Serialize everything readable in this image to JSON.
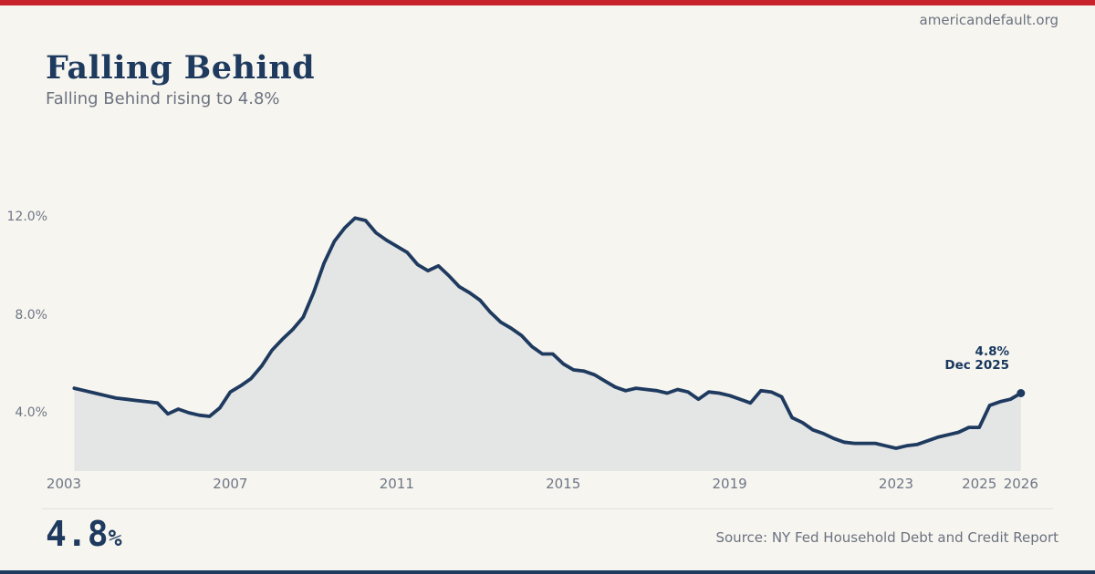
{
  "site": {
    "domain": "americandefault.org"
  },
  "header": {
    "title": "Falling Behind",
    "subtitle": "Falling Behind rising to 4.8%"
  },
  "chart_data": {
    "type": "area",
    "title": "Falling Behind",
    "xlabel": "",
    "ylabel": "",
    "x_start": "2003Q1",
    "x_end": "2025Q4",
    "points_per_year": 4,
    "start_year": 2003,
    "xlim": [
      2003,
      2026
    ],
    "ylim": [
      1.6,
      12.6
    ],
    "grid": false,
    "legend": "none",
    "series": [
      {
        "name": "delinquency_rate_percent",
        "values": [
          5.0,
          4.9,
          4.8,
          4.7,
          4.6,
          4.55,
          4.5,
          4.45,
          4.4,
          3.95,
          4.15,
          4.0,
          3.9,
          3.85,
          4.2,
          4.85,
          5.1,
          5.4,
          5.9,
          6.55,
          7.0,
          7.4,
          7.9,
          8.9,
          10.1,
          11.0,
          11.55,
          11.95,
          11.85,
          11.35,
          11.05,
          10.8,
          10.55,
          10.05,
          9.8,
          10.0,
          9.6,
          9.15,
          8.9,
          8.6,
          8.1,
          7.7,
          7.45,
          7.15,
          6.7,
          6.4,
          6.4,
          6.0,
          5.75,
          5.7,
          5.55,
          5.3,
          5.05,
          4.9,
          5.0,
          4.95,
          4.9,
          4.8,
          4.95,
          4.85,
          4.55,
          4.85,
          4.8,
          4.7,
          4.55,
          4.4,
          4.9,
          4.85,
          4.65,
          3.8,
          3.6,
          3.3,
          3.15,
          2.95,
          2.8,
          2.75,
          2.75,
          2.75,
          2.65,
          2.55,
          2.65,
          2.7,
          2.85,
          3.0,
          3.1,
          3.2,
          3.4,
          3.4,
          4.3,
          4.45,
          4.55,
          4.8
        ]
      }
    ],
    "x_ticks": [
      {
        "label": "2003",
        "year": 2003
      },
      {
        "label": "2007",
        "year": 2007
      },
      {
        "label": "2011",
        "year": 2011
      },
      {
        "label": "2015",
        "year": 2015
      },
      {
        "label": "2019",
        "year": 2019
      },
      {
        "label": "2023",
        "year": 2023
      },
      {
        "label": "2025",
        "year": 2025
      },
      {
        "label": "2026",
        "year": 2026
      }
    ],
    "y_ticks": [
      {
        "label": "4.0%",
        "value": 4
      },
      {
        "label": "8.0%",
        "value": 8
      },
      {
        "label": "12.0%",
        "value": 12
      }
    ],
    "end_label": {
      "value_text": "4.8%",
      "date_text": "Dec 2025"
    },
    "colors": {
      "line": "#1e3a5f",
      "fill": "#e4e6e6",
      "accent_red": "#c8232c",
      "accent_navy": "#1e3a5f"
    }
  },
  "footer": {
    "big_value": "4.8",
    "big_unit": "%",
    "source": "Source: NY Fed Household Debt and Credit Report"
  }
}
